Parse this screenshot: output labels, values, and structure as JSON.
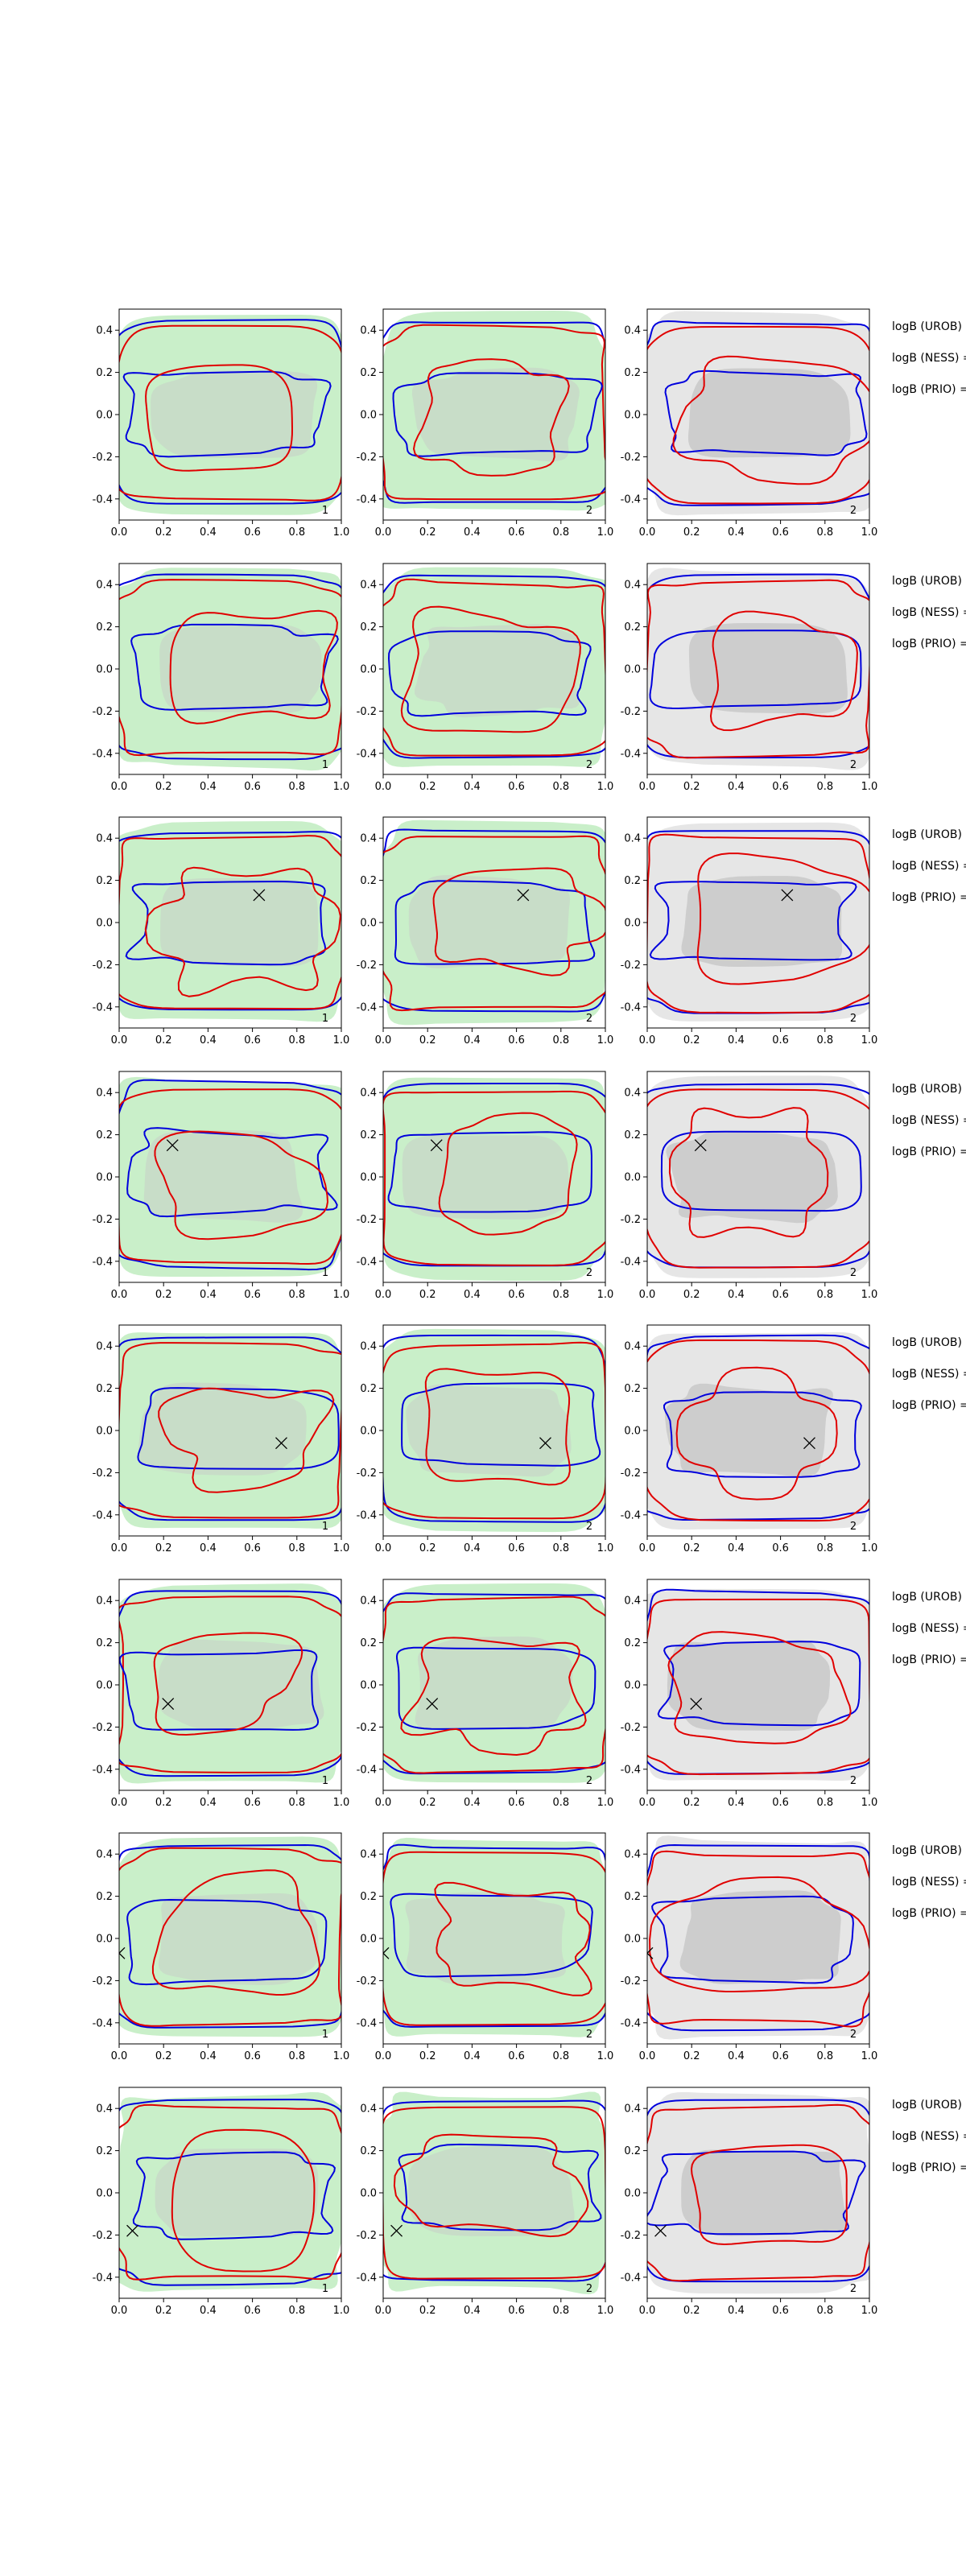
{
  "chart_data": {
    "type": "contour-grid",
    "rows": 8,
    "cols": 3,
    "xlim": [
      0.0,
      1.0
    ],
    "ylim": [
      -0.5,
      0.5
    ],
    "x_ticks": [
      "0.0",
      "0.2",
      "0.4",
      "0.6",
      "0.8",
      "1.0"
    ],
    "y_ticks": [
      "-0.4",
      "-0.2",
      "0.0",
      "0.2",
      "0.4"
    ],
    "panel_labels": [
      "1",
      "2",
      "2"
    ],
    "row_labels": [
      "logB (UROB) =",
      "logB (NESS) =",
      "logB (PRIO) ="
    ],
    "markers": [
      null,
      null,
      {
        "x": 0.63,
        "y": 0.13
      },
      {
        "x": 0.24,
        "y": 0.15
      },
      {
        "x": 0.73,
        "y": -0.06
      },
      {
        "x": 0.22,
        "y": -0.09
      },
      {
        "x": 0.0,
        "y": -0.07
      },
      {
        "x": 0.06,
        "y": -0.18
      }
    ],
    "colors": {
      "blue_contour": "#0000dd",
      "red_contour": "#e00000",
      "green_fill": "#c9efc9",
      "gray_fill": "#e6e6e6",
      "inner_gray": "#c8c8c8",
      "axis": "#000000"
    }
  }
}
